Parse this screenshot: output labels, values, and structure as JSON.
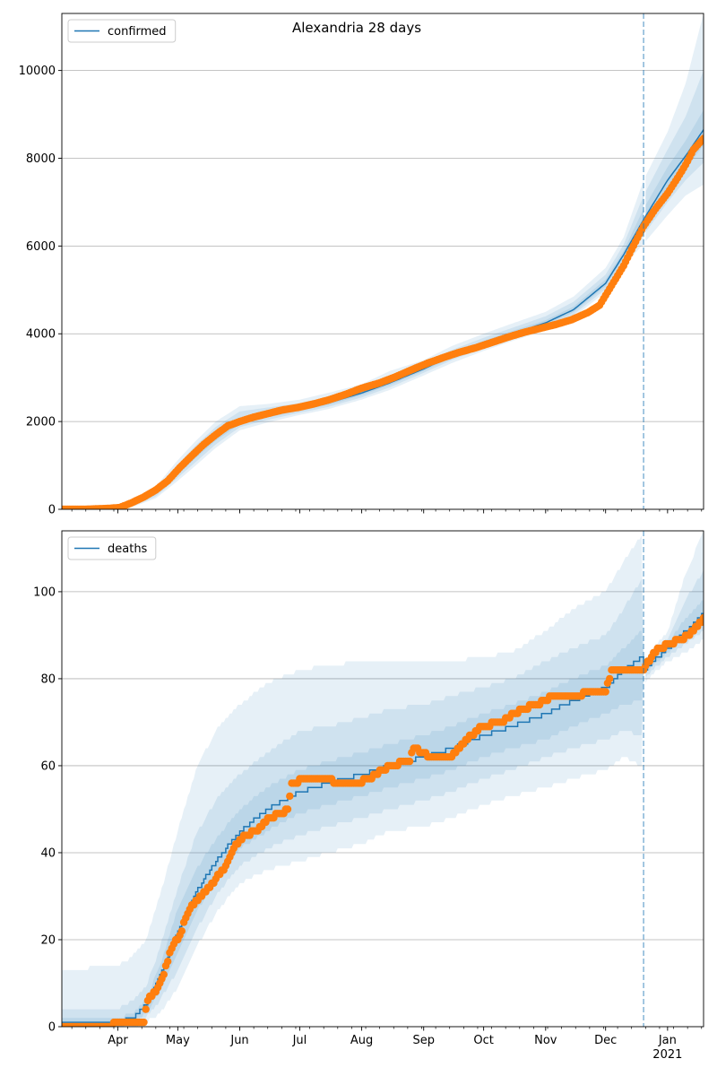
{
  "figure": {
    "suptitle": "Alexandria 28 days"
  },
  "colors": {
    "line": "#1f77b4",
    "points": "#ff7f0e",
    "band": "#1f77b4",
    "grid": "#b0b0b0",
    "axis": "#000000",
    "forecast_line": "#1f77b4"
  },
  "chart_data": [
    {
      "type": "line",
      "name": "confirmed-chart",
      "title": "Alexandria 28 days",
      "xlabel": "",
      "ylabel": "",
      "ylim": [
        0,
        11300
      ],
      "yticks": [
        0,
        2000,
        4000,
        6000,
        8000,
        10000
      ],
      "xlim": [
        "2020-03-04",
        "2021-01-19"
      ],
      "xticks": [
        {
          "date": "2020-04-01",
          "label": "Apr"
        },
        {
          "date": "2020-05-01",
          "label": "May"
        },
        {
          "date": "2020-06-01",
          "label": "Jun"
        },
        {
          "date": "2020-07-01",
          "label": "Jul"
        },
        {
          "date": "2020-08-01",
          "label": "Aug"
        },
        {
          "date": "2020-09-01",
          "label": "Sep"
        },
        {
          "date": "2020-10-01",
          "label": "Oct"
        },
        {
          "date": "2020-11-01",
          "label": "Nov"
        },
        {
          "date": "2020-12-01",
          "label": "Dec"
        },
        {
          "date": "2021-01-01",
          "label": "Jan\n2021"
        }
      ],
      "show_xtick_labels": false,
      "grid": "y",
      "legend": "top-left",
      "forecast_date": "2020-12-20",
      "model": {
        "name": "confirmed",
        "dates": [
          "2020-03-04",
          "2020-03-20",
          "2020-04-01",
          "2020-04-10",
          "2020-04-20",
          "2020-05-01",
          "2020-05-10",
          "2020-05-20",
          "2020-06-01",
          "2020-06-15",
          "2020-07-01",
          "2020-07-15",
          "2020-08-01",
          "2020-08-15",
          "2020-09-01",
          "2020-09-15",
          "2020-10-01",
          "2020-10-15",
          "2020-11-01",
          "2020-11-15",
          "2020-12-01",
          "2020-12-10",
          "2020-12-20",
          "2021-01-01",
          "2021-01-10",
          "2021-01-19"
        ],
        "values": [
          0,
          0,
          30,
          150,
          380,
          850,
          1250,
          1650,
          2000,
          2150,
          2300,
          2420,
          2650,
          2880,
          3200,
          3500,
          3780,
          4000,
          4250,
          4550,
          5150,
          5800,
          6600,
          7500,
          8050,
          8650
        ],
        "bands": [
          {
            "lower": [
              0,
              0,
              0,
              80,
              250,
              650,
              1000,
              1400,
              1800,
              1980,
              2150,
              2280,
              2500,
              2720,
              3050,
              3330,
              3610,
              3830,
              4080,
              4380,
              4950,
              5550,
              6050,
              6700,
              7150,
              7400
            ],
            "upper": [
              0,
              0,
              80,
              240,
              520,
              1120,
              1560,
              2000,
              2350,
              2400,
              2500,
              2650,
              2850,
              3150,
              3400,
              3720,
              4000,
              4230,
              4500,
              4850,
              5500,
              6200,
              7500,
              8600,
              9700,
              11300
            ]
          },
          {
            "lower": [
              0,
              0,
              10,
              100,
              290,
              720,
              1080,
              1480,
              1870,
              2040,
              2200,
              2330,
              2550,
              2780,
              3110,
              3400,
              3670,
              3890,
              4140,
              4440,
              5020,
              5640,
              6250,
              7000,
              7500,
              7900
            ],
            "upper": [
              0,
              0,
              60,
              210,
              470,
              1020,
              1460,
              1880,
              2230,
              2320,
              2420,
              2560,
              2770,
              3040,
              3320,
              3630,
              3910,
              4130,
              4400,
              4730,
              5350,
              6030,
              7150,
              8200,
              8950,
              10000
            ]
          },
          {
            "lower": [
              0,
              0,
              20,
              125,
              335,
              790,
              1170,
              1565,
              1935,
              2095,
              2250,
              2375,
              2600,
              2830,
              3155,
              3450,
              3725,
              3945,
              4195,
              4495,
              5085,
              5720,
              6420,
              7250,
              7750,
              8300
            ],
            "upper": [
              0,
              0,
              45,
              180,
              430,
              920,
              1340,
              1750,
              2080,
              2220,
              2370,
              2480,
              2710,
              2950,
              3255,
              3560,
              3840,
              4060,
              4310,
              4620,
              5240,
              5890,
              6850,
              7800,
              8400,
              9100
            ]
          }
        ]
      },
      "observed": {
        "dates": [
          "2020-03-04",
          "2020-03-15",
          "2020-03-27",
          "2020-04-02",
          "2020-04-08",
          "2020-04-14",
          "2020-04-20",
          "2020-04-26",
          "2020-05-02",
          "2020-05-08",
          "2020-05-14",
          "2020-05-20",
          "2020-05-26",
          "2020-06-01",
          "2020-06-08",
          "2020-06-15",
          "2020-06-22",
          "2020-06-30",
          "2020-07-08",
          "2020-07-16",
          "2020-07-24",
          "2020-08-01",
          "2020-08-10",
          "2020-08-18",
          "2020-08-26",
          "2020-09-03",
          "2020-09-11",
          "2020-09-19",
          "2020-09-27",
          "2020-10-05",
          "2020-10-13",
          "2020-10-21",
          "2020-10-29",
          "2020-11-06",
          "2020-11-14",
          "2020-11-22",
          "2020-11-28",
          "2020-12-04",
          "2020-12-10",
          "2020-12-16",
          "2020-12-20",
          "2020-12-26",
          "2021-01-01",
          "2021-01-06",
          "2021-01-10",
          "2021-01-14",
          "2021-01-19"
        ],
        "values": [
          0,
          0,
          20,
          40,
          150,
          280,
          440,
          650,
          950,
          1220,
          1480,
          1700,
          1900,
          2000,
          2100,
          2180,
          2260,
          2320,
          2400,
          2500,
          2620,
          2760,
          2880,
          3020,
          3180,
          3330,
          3460,
          3580,
          3680,
          3800,
          3920,
          4030,
          4120,
          4210,
          4320,
          4480,
          4650,
          5100,
          5550,
          6100,
          6450,
          6850,
          7200,
          7550,
          7850,
          8200,
          8450
        ]
      }
    },
    {
      "type": "line",
      "name": "deaths-chart",
      "title": "",
      "xlabel": "",
      "ylabel": "",
      "ylim": [
        0,
        114
      ],
      "yticks": [
        0,
        20,
        40,
        60,
        80,
        100
      ],
      "xlim": [
        "2020-03-04",
        "2021-01-19"
      ],
      "xticks": [
        {
          "date": "2020-04-01",
          "label": "Apr"
        },
        {
          "date": "2020-05-01",
          "label": "May"
        },
        {
          "date": "2020-06-01",
          "label": "Jun"
        },
        {
          "date": "2020-07-01",
          "label": "Jul"
        },
        {
          "date": "2020-08-01",
          "label": "Aug"
        },
        {
          "date": "2020-09-01",
          "label": "Sep"
        },
        {
          "date": "2020-10-01",
          "label": "Oct"
        },
        {
          "date": "2020-11-01",
          "label": "Nov"
        },
        {
          "date": "2020-12-01",
          "label": "Dec"
        },
        {
          "date": "2021-01-01",
          "label": "Jan\n2021"
        }
      ],
      "show_xtick_labels": true,
      "grid": "y",
      "legend": "top-left",
      "forecast_date": "2020-12-20",
      "model": {
        "name": "deaths",
        "dates": [
          "2020-03-04",
          "2020-04-01",
          "2020-04-08",
          "2020-04-15",
          "2020-04-22",
          "2020-05-01",
          "2020-05-10",
          "2020-05-20",
          "2020-06-01",
          "2020-06-15",
          "2020-07-01",
          "2020-07-15",
          "2020-08-01",
          "2020-08-15",
          "2020-09-01",
          "2020-09-15",
          "2020-10-01",
          "2020-10-15",
          "2020-11-01",
          "2020-11-15",
          "2020-12-01",
          "2020-12-10",
          "2020-12-19",
          "2020-12-20",
          "2021-01-01",
          "2021-01-10",
          "2021-01-19"
        ],
        "values": [
          1,
          1,
          2,
          5,
          12,
          22,
          31,
          38,
          45,
          50,
          54,
          56,
          58,
          60,
          62,
          64,
          67,
          69,
          72,
          75,
          78,
          82,
          85,
          82,
          87,
          91,
          95
        ],
        "bands": [
          {
            "lower": [
              0,
              0,
              0,
              1,
              3,
              9,
              18,
              26,
              33,
              36,
              38,
              40,
              42,
              45,
              46,
              48,
              51,
              53,
              55,
              57,
              59,
              62,
              60,
              79,
              84,
              86,
              89
            ],
            "upper": [
              13,
              14,
              16,
              20,
              30,
              45,
              59,
              68,
              74,
              79,
              82,
              83,
              84,
              84,
              84,
              84,
              85,
              86,
              91,
              96,
              100,
              107,
              113,
              84,
              91,
              104,
              114
            ]
          },
          {
            "lower": [
              0,
              0,
              1,
              2,
              6,
              13,
              22,
              30,
              37,
              41,
              44,
              46,
              48,
              50,
              52,
              54,
              57,
              59,
              62,
              64,
              66,
              68,
              67,
              80,
              85,
              88,
              91
            ],
            "upper": [
              4,
              4,
              6,
              9,
              18,
              32,
              44,
              52,
              58,
              63,
              68,
              69,
              71,
              73,
              74,
              76,
              78,
              80,
              84,
              87,
              90,
              96,
              103,
              84,
              89,
              98,
              105
            ]
          },
          {
            "lower": [
              0,
              0,
              1,
              3,
              8,
              17,
              26,
              34,
              41,
              45,
              49,
              51,
              53,
              55,
              57,
              59,
              62,
              64,
              66,
              69,
              72,
              74,
              75,
              81,
              86,
              90,
              93
            ],
            "upper": [
              2,
              2,
              3,
              6,
              14,
              27,
              36,
              43,
              50,
              55,
              59,
              61,
              63,
              65,
              67,
              69,
              72,
              74,
              77,
              80,
              83,
              87,
              91,
              83,
              88,
              94,
              98
            ]
          }
        ]
      },
      "observed": {
        "dates": [
          "2020-03-04",
          "2020-03-20",
          "2020-04-08",
          "2020-04-14",
          "2020-04-16",
          "2020-04-20",
          "2020-04-24",
          "2020-04-28",
          "2020-05-02",
          "2020-05-06",
          "2020-05-10",
          "2020-05-15",
          "2020-05-20",
          "2020-05-25",
          "2020-05-29",
          "2020-06-04",
          "2020-06-10",
          "2020-06-16",
          "2020-06-22",
          "2020-06-25",
          "2020-06-27",
          "2020-07-05",
          "2020-07-15",
          "2020-07-20",
          "2020-07-30",
          "2020-08-05",
          "2020-08-15",
          "2020-08-25",
          "2020-08-27",
          "2020-09-05",
          "2020-09-15",
          "2020-09-20",
          "2020-09-30",
          "2020-10-10",
          "2020-10-20",
          "2020-10-28",
          "2020-11-05",
          "2020-11-15",
          "2020-11-25",
          "2020-12-01",
          "2020-12-04",
          "2020-12-15",
          "2020-12-20",
          "2020-12-25",
          "2021-01-01",
          "2021-01-08",
          "2021-01-14",
          "2021-01-19"
        ],
        "values": [
          0,
          0,
          1,
          1,
          6,
          8,
          12,
          18,
          21,
          26,
          29,
          31,
          34,
          37,
          41,
          44,
          45,
          48,
          49,
          50,
          56,
          57,
          57,
          56,
          56,
          57,
          60,
          61,
          64,
          62,
          62,
          65,
          69,
          70,
          73,
          74,
          76,
          76,
          77,
          77,
          82,
          82,
          82,
          86,
          88,
          89,
          91,
          94
        ]
      }
    }
  ]
}
